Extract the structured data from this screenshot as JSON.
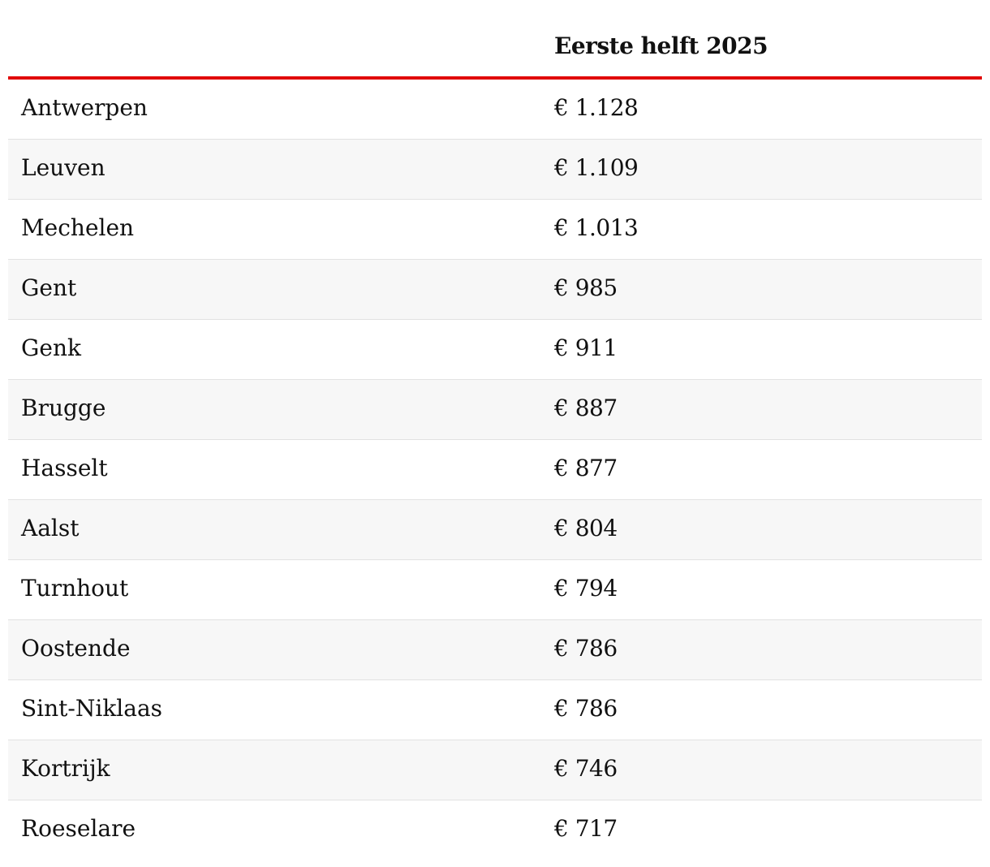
{
  "table": {
    "header": {
      "col_city": "",
      "col_value": "Eerste helft 2025"
    },
    "rows": [
      {
        "city": "Antwerpen",
        "value": "€ 1.128"
      },
      {
        "city": "Leuven",
        "value": "€ 1.109"
      },
      {
        "city": "Mechelen",
        "value": "€ 1.013"
      },
      {
        "city": "Gent",
        "value": "€ 985"
      },
      {
        "city": "Genk",
        "value": "€ 911"
      },
      {
        "city": "Brugge",
        "value": "€ 887"
      },
      {
        "city": "Hasselt",
        "value": "€ 877"
      },
      {
        "city": "Aalst",
        "value": "€ 804"
      },
      {
        "city": "Turnhout",
        "value": "€ 794"
      },
      {
        "city": "Oostende",
        "value": "€ 786"
      },
      {
        "city": "Sint-Niklaas",
        "value": "€ 786"
      },
      {
        "city": "Kortrijk",
        "value": "€ 746"
      },
      {
        "city": "Roeselare",
        "value": "€ 717"
      }
    ],
    "colors": {
      "header_rule": "#e10a0a",
      "row_alt": "#f7f7f7",
      "row_divider": "#e2e2e2"
    }
  }
}
